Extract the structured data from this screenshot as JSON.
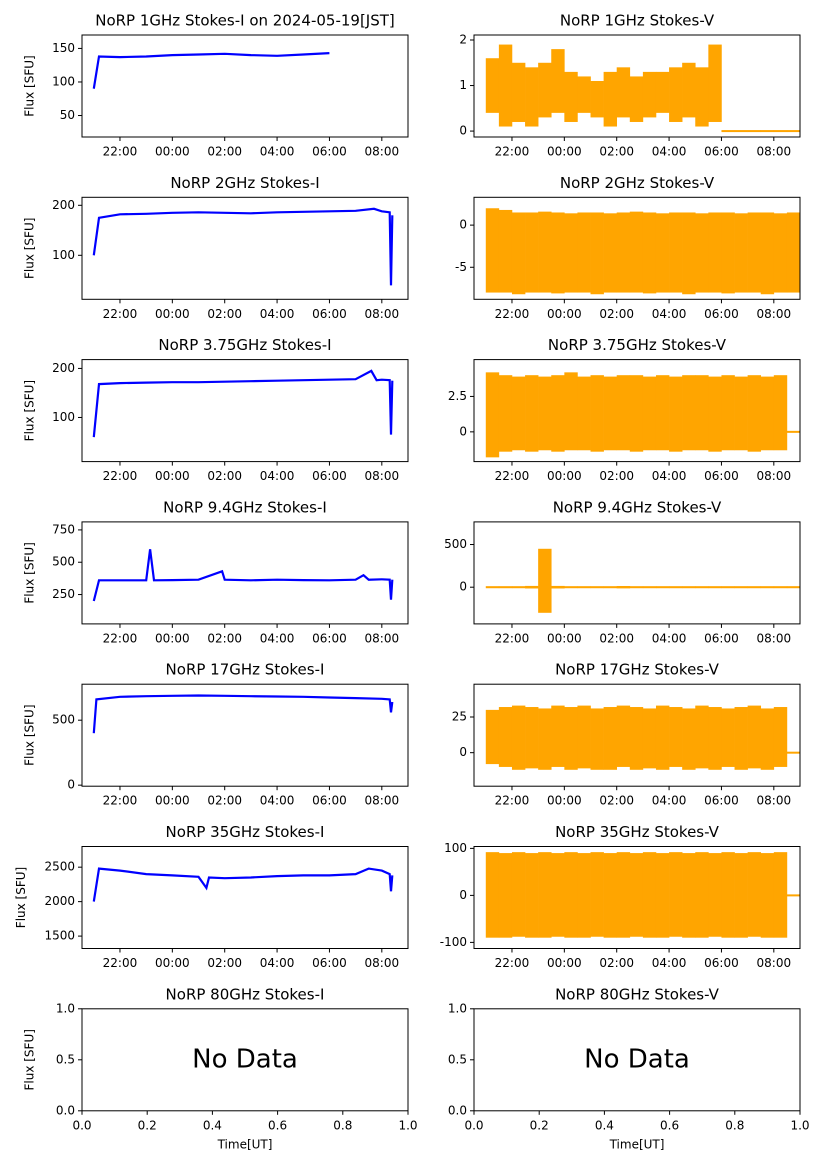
{
  "chart_data": [
    {
      "type": "line",
      "title": "NoRP 1GHz Stokes-I on 2024-05-19[JST]",
      "ylabel": "Flux [SFU]",
      "color": "#0000ff",
      "x": [
        21,
        21.2,
        22,
        23,
        24,
        25,
        26,
        27,
        28,
        29,
        30
      ],
      "values": [
        90,
        138,
        137,
        138,
        140,
        141,
        142,
        140,
        139,
        141,
        143
      ],
      "xlim": [
        20.55,
        33
      ],
      "xticks": [
        {
          "value": 22,
          "label": "22:00"
        },
        {
          "value": 24,
          "label": "00:00"
        },
        {
          "value": 26,
          "label": "02:00"
        },
        {
          "value": 28,
          "label": "04:00"
        },
        {
          "value": 30,
          "label": "06:00"
        },
        {
          "value": 32,
          "label": "08:00"
        }
      ],
      "ylim": [
        18,
        170
      ],
      "yticks": [
        50,
        100,
        150
      ]
    },
    {
      "type": "range",
      "title": "NoRP 1GHz Stokes-V",
      "color": "#ffa500",
      "x": [
        21,
        21.5,
        22,
        22.5,
        23,
        23.5,
        24,
        24.5,
        25,
        25.5,
        26,
        26.5,
        27,
        27.5,
        28,
        28.5,
        29,
        29.5,
        30,
        30.5,
        31,
        31.5,
        32,
        32.5
      ],
      "low": [
        0.4,
        0.1,
        0.2,
        0.1,
        0.3,
        0.4,
        0.2,
        0.4,
        0.3,
        0.1,
        0.3,
        0.2,
        0.3,
        0.4,
        0.2,
        0.3,
        0.1,
        0.2,
        0,
        0,
        0,
        0,
        0,
        0
      ],
      "high": [
        1.6,
        1.9,
        1.5,
        1.4,
        1.5,
        1.8,
        1.3,
        1.2,
        1.1,
        1.3,
        1.4,
        1.2,
        1.3,
        1.3,
        1.4,
        1.5,
        1.4,
        1.9,
        0,
        0,
        0,
        0,
        0,
        0
      ],
      "xlim": [
        20.55,
        33
      ],
      "xticks": [
        {
          "value": 22,
          "label": "22:00"
        },
        {
          "value": 24,
          "label": "00:00"
        },
        {
          "value": 26,
          "label": "02:00"
        },
        {
          "value": 28,
          "label": "04:00"
        },
        {
          "value": 30,
          "label": "06:00"
        },
        {
          "value": 32,
          "label": "08:00"
        }
      ],
      "ylim": [
        -0.13,
        2.11
      ],
      "yticks": [
        0,
        1,
        2
      ]
    },
    {
      "type": "line",
      "title": "NoRP 2GHz Stokes-I",
      "ylabel": "Flux [SFU]",
      "color": "#0000ff",
      "x": [
        21,
        21.2,
        22,
        23,
        24,
        25,
        26,
        27,
        28,
        29,
        30,
        31,
        31.7,
        32,
        32.3,
        32.35,
        32.4
      ],
      "values": [
        100,
        175,
        182,
        183,
        185,
        186,
        185,
        184,
        186,
        187,
        188,
        189,
        193,
        188,
        186,
        40,
        180
      ],
      "xlim": [
        20.55,
        33
      ],
      "xticks": [
        {
          "value": 22,
          "label": "22:00"
        },
        {
          "value": 24,
          "label": "00:00"
        },
        {
          "value": 26,
          "label": "02:00"
        },
        {
          "value": 28,
          "label": "04:00"
        },
        {
          "value": 30,
          "label": "06:00"
        },
        {
          "value": 32,
          "label": "08:00"
        }
      ],
      "ylim": [
        12,
        216
      ],
      "yticks": [
        100,
        200
      ]
    },
    {
      "type": "range",
      "title": "NoRP 2GHz Stokes-V",
      "color": "#ffa500",
      "x": [
        21,
        21.5,
        22,
        22.5,
        23,
        23.5,
        24,
        24.5,
        25,
        25.5,
        26,
        26.5,
        27,
        27.5,
        28,
        28.5,
        29,
        29.5,
        30,
        30.5,
        31,
        31.5,
        32,
        32.5
      ],
      "low": [
        -8,
        -8,
        -8.2,
        -8,
        -8,
        -8.1,
        -8,
        -8,
        -8.2,
        -8,
        -8,
        -8,
        -8.1,
        -8,
        -8,
        -8.2,
        -8,
        -8,
        -8.1,
        -8,
        -8,
        -8.2,
        -8,
        -8
      ],
      "high": [
        2,
        1.8,
        1.5,
        1.5,
        1.6,
        1.5,
        1.4,
        1.5,
        1.5,
        1.4,
        1.5,
        1.6,
        1.5,
        1.4,
        1.5,
        1.5,
        1.4,
        1.5,
        1.5,
        1.4,
        1.5,
        1.5,
        1.4,
        1.5
      ],
      "xlim": [
        20.55,
        33
      ],
      "xticks": [
        {
          "value": 22,
          "label": "22:00"
        },
        {
          "value": 24,
          "label": "00:00"
        },
        {
          "value": 26,
          "label": "02:00"
        },
        {
          "value": 28,
          "label": "04:00"
        },
        {
          "value": 30,
          "label": "06:00"
        },
        {
          "value": 32,
          "label": "08:00"
        }
      ],
      "ylim": [
        -8.8,
        3.3
      ],
      "yticks": [
        -5,
        0
      ]
    },
    {
      "type": "line",
      "title": "NoRP 3.75GHz Stokes-I",
      "ylabel": "Flux [SFU]",
      "color": "#0000ff",
      "x": [
        21,
        21.2,
        22,
        23,
        24,
        25,
        26,
        27,
        28,
        29,
        30,
        31,
        31.6,
        31.8,
        32,
        32.3,
        32.35,
        32.4
      ],
      "values": [
        60,
        168,
        170,
        171,
        172,
        172,
        173,
        174,
        175,
        176,
        177,
        178,
        195,
        176,
        177,
        176,
        65,
        175
      ],
      "xlim": [
        20.55,
        33
      ],
      "xticks": [
        {
          "value": 22,
          "label": "22:00"
        },
        {
          "value": 24,
          "label": "00:00"
        },
        {
          "value": 26,
          "label": "02:00"
        },
        {
          "value": 28,
          "label": "04:00"
        },
        {
          "value": 30,
          "label": "06:00"
        },
        {
          "value": 32,
          "label": "08:00"
        }
      ],
      "ylim": [
        10,
        218
      ],
      "yticks": [
        100,
        200
      ]
    },
    {
      "type": "range",
      "title": "NoRP 3.75GHz Stokes-V",
      "color": "#ffa500",
      "x": [
        21,
        21.5,
        22,
        22.5,
        23,
        23.5,
        24,
        24.5,
        25,
        25.5,
        26,
        26.5,
        27,
        27.5,
        28,
        28.5,
        29,
        29.5,
        30,
        30.5,
        31,
        31.5,
        32,
        32.5
      ],
      "low": [
        -1.8,
        -1.4,
        -1.3,
        -1.4,
        -1.3,
        -1.4,
        -1.3,
        -1.3,
        -1.4,
        -1.3,
        -1.3,
        -1.4,
        -1.3,
        -1.3,
        -1.4,
        -1.3,
        -1.3,
        -1.4,
        -1.3,
        -1.3,
        -1.4,
        -1.3,
        -1.3,
        0
      ],
      "high": [
        4.2,
        4,
        3.9,
        4,
        3.9,
        4,
        4.2,
        3.9,
        4,
        3.9,
        4,
        4,
        3.9,
        4,
        3.9,
        4,
        4,
        3.9,
        4,
        3.9,
        4,
        3.9,
        4,
        0
      ],
      "xlim": [
        20.55,
        33
      ],
      "xticks": [
        {
          "value": 22,
          "label": "22:00"
        },
        {
          "value": 24,
          "label": "00:00"
        },
        {
          "value": 26,
          "label": "02:00"
        },
        {
          "value": 28,
          "label": "04:00"
        },
        {
          "value": 30,
          "label": "06:00"
        },
        {
          "value": 32,
          "label": "08:00"
        }
      ],
      "ylim": [
        -2.1,
        5.1
      ],
      "yticks": [
        0.0,
        2.5
      ]
    },
    {
      "type": "line",
      "title": "NoRP 9.4GHz Stokes-I",
      "ylabel": "Flux [SFU]",
      "color": "#0000ff",
      "x": [
        21,
        21.2,
        22,
        23,
        23.15,
        23.3,
        24,
        25,
        25.9,
        26,
        27,
        28,
        29,
        30,
        31,
        31.3,
        31.5,
        32,
        32.3,
        32.35,
        32.4
      ],
      "values": [
        200,
        360,
        360,
        360,
        600,
        360,
        362,
        365,
        430,
        365,
        360,
        365,
        362,
        360,
        365,
        400,
        365,
        368,
        365,
        210,
        365
      ],
      "xlim": [
        20.55,
        33
      ],
      "xticks": [
        {
          "value": 22,
          "label": "22:00"
        },
        {
          "value": 24,
          "label": "00:00"
        },
        {
          "value": 26,
          "label": "02:00"
        },
        {
          "value": 28,
          "label": "04:00"
        },
        {
          "value": 30,
          "label": "06:00"
        },
        {
          "value": 32,
          "label": "08:00"
        }
      ],
      "ylim": [
        23,
        812
      ],
      "yticks": [
        250,
        500,
        750
      ]
    },
    {
      "type": "range",
      "title": "NoRP 9.4GHz Stokes-V",
      "color": "#ffa500",
      "x": [
        21,
        21.5,
        22,
        22.5,
        23,
        23.5,
        24,
        24.5,
        25,
        25.5,
        26,
        26.5,
        27,
        27.5,
        28,
        28.5,
        29,
        29.5,
        30,
        30.5,
        31,
        31.5,
        32,
        32.5
      ],
      "low": [
        -12,
        -12,
        -12,
        -15,
        -300,
        -15,
        -12,
        -12,
        -12,
        -12,
        -14,
        -12,
        -12,
        -12,
        -12,
        -12,
        -12,
        -12,
        -12,
        -12,
        -12,
        -12,
        -12,
        -12
      ],
      "high": [
        12,
        12,
        12,
        15,
        450,
        15,
        12,
        12,
        12,
        12,
        14,
        12,
        12,
        12,
        12,
        12,
        12,
        12,
        12,
        12,
        12,
        12,
        12,
        12
      ],
      "xlim": [
        20.55,
        33
      ],
      "xticks": [
        {
          "value": 22,
          "label": "22:00"
        },
        {
          "value": 24,
          "label": "00:00"
        },
        {
          "value": 26,
          "label": "02:00"
        },
        {
          "value": 28,
          "label": "04:00"
        },
        {
          "value": 30,
          "label": "06:00"
        },
        {
          "value": 32,
          "label": "08:00"
        }
      ],
      "ylim": [
        -430,
        765
      ],
      "yticks": [
        0,
        500
      ]
    },
    {
      "type": "line",
      "title": "NoRP 17GHz Stokes-I",
      "ylabel": "Flux [SFU]",
      "color": "#0000ff",
      "x": [
        21,
        21.1,
        22,
        23,
        24,
        25,
        26,
        27,
        28,
        29,
        30,
        31,
        32,
        32.3,
        32.35,
        32.4
      ],
      "values": [
        400,
        660,
        680,
        685,
        688,
        690,
        688,
        685,
        682,
        680,
        675,
        670,
        665,
        660,
        560,
        640
      ],
      "xlim": [
        20.55,
        33
      ],
      "xticks": [
        {
          "value": 22,
          "label": "22:00"
        },
        {
          "value": 24,
          "label": "00:00"
        },
        {
          "value": 26,
          "label": "02:00"
        },
        {
          "value": 28,
          "label": "04:00"
        },
        {
          "value": 30,
          "label": "06:00"
        },
        {
          "value": 32,
          "label": "08:00"
        }
      ],
      "ylim": [
        -8,
        777
      ],
      "yticks": [
        0,
        500
      ]
    },
    {
      "type": "range",
      "title": "NoRP 17GHz Stokes-V",
      "color": "#ffa500",
      "x": [
        21,
        21.5,
        22,
        22.5,
        23,
        23.5,
        24,
        24.5,
        25,
        25.5,
        26,
        26.5,
        27,
        27.5,
        28,
        28.5,
        29,
        29.5,
        30,
        30.5,
        31,
        31.5,
        32,
        32.5
      ],
      "low": [
        -8,
        -10,
        -12,
        -11,
        -12,
        -10,
        -12,
        -11,
        -12,
        -12,
        -10,
        -12,
        -11,
        -12,
        -10,
        -12,
        -11,
        -12,
        -10,
        -12,
        -11,
        -12,
        -10,
        0
      ],
      "high": [
        30,
        32,
        33,
        32,
        31,
        33,
        32,
        33,
        31,
        32,
        33,
        32,
        31,
        33,
        32,
        31,
        33,
        32,
        31,
        32,
        33,
        31,
        32,
        0
      ],
      "xlim": [
        20.55,
        33
      ],
      "xticks": [
        {
          "value": 22,
          "label": "22:00"
        },
        {
          "value": 24,
          "label": "00:00"
        },
        {
          "value": 26,
          "label": "02:00"
        },
        {
          "value": 28,
          "label": "04:00"
        },
        {
          "value": 30,
          "label": "06:00"
        },
        {
          "value": 32,
          "label": "08:00"
        }
      ],
      "ylim": [
        -23.5,
        48
      ],
      "yticks": [
        0,
        25
      ]
    },
    {
      "type": "line",
      "title": "NoRP 35GHz Stokes-I",
      "ylabel": "Flux [SFU]",
      "color": "#0000ff",
      "x": [
        21,
        21.2,
        22,
        23,
        24,
        25,
        25.3,
        25.4,
        26,
        27,
        28,
        29,
        30,
        31,
        31.5,
        32,
        32.3,
        32.35,
        32.4
      ],
      "values": [
        2000,
        2480,
        2450,
        2400,
        2380,
        2360,
        2200,
        2350,
        2340,
        2350,
        2370,
        2380,
        2380,
        2400,
        2480,
        2450,
        2400,
        2150,
        2380
      ],
      "xlim": [
        20.55,
        33
      ],
      "xticks": [
        {
          "value": 22,
          "label": "22:00"
        },
        {
          "value": 24,
          "label": "00:00"
        },
        {
          "value": 26,
          "label": "02:00"
        },
        {
          "value": 28,
          "label": "04:00"
        },
        {
          "value": 30,
          "label": "06:00"
        },
        {
          "value": 32,
          "label": "08:00"
        }
      ],
      "ylim": [
        1320,
        2800
      ],
      "yticks": [
        1500,
        2000,
        2500
      ]
    },
    {
      "type": "range",
      "title": "NoRP 35GHz Stokes-V",
      "color": "#ffa500",
      "x": [
        21,
        21.5,
        22,
        22.5,
        23,
        23.5,
        24,
        24.5,
        25,
        25.5,
        26,
        26.5,
        27,
        27.5,
        28,
        28.5,
        29,
        29.5,
        30,
        30.5,
        31,
        31.5,
        32,
        32.5
      ],
      "low": [
        -90,
        -90,
        -88,
        -90,
        -90,
        -88,
        -90,
        -90,
        -88,
        -90,
        -90,
        -88,
        -90,
        -90,
        -88,
        -90,
        -90,
        -88,
        -90,
        -90,
        -88,
        -90,
        -90,
        0
      ],
      "high": [
        92,
        90,
        92,
        90,
        92,
        90,
        92,
        90,
        92,
        90,
        92,
        90,
        92,
        90,
        92,
        90,
        92,
        90,
        92,
        90,
        92,
        90,
        92,
        0
      ],
      "xlim": [
        20.55,
        33
      ],
      "xticks": [
        {
          "value": 22,
          "label": "22:00"
        },
        {
          "value": 24,
          "label": "00:00"
        },
        {
          "value": 26,
          "label": "02:00"
        },
        {
          "value": 28,
          "label": "04:00"
        },
        {
          "value": 30,
          "label": "06:00"
        },
        {
          "value": 32,
          "label": "08:00"
        }
      ],
      "ylim": [
        -113,
        104
      ],
      "yticks": [
        -100,
        0,
        100
      ]
    },
    {
      "type": "empty",
      "title": "NoRP 80GHz Stokes-I",
      "ylabel": "Flux [SFU]",
      "xlabel": "Time[UT]",
      "annotation": "No Data",
      "xlim": [
        0,
        1
      ],
      "xticks": [
        {
          "value": 0,
          "label": "0.0"
        },
        0.2,
        0.4,
        0.6,
        0.8,
        {
          "value": 1,
          "label": "1.0"
        }
      ],
      "ylim": [
        0,
        1
      ],
      "yticks": [
        {
          "value": 0,
          "label": "0.0"
        },
        0.5,
        {
          "value": 1,
          "label": "1.0"
        }
      ]
    },
    {
      "type": "empty",
      "title": "NoRP 80GHz Stokes-V",
      "xlabel": "Time[UT]",
      "annotation": "No Data",
      "xlim": [
        0,
        1
      ],
      "xticks": [
        {
          "value": 0,
          "label": "0.0"
        },
        0.2,
        0.4,
        0.6,
        0.8,
        {
          "value": 1,
          "label": "1.0"
        }
      ],
      "ylim": [
        0,
        1
      ],
      "yticks": [
        {
          "value": 0,
          "label": "0.0"
        },
        0.5,
        {
          "value": 1,
          "label": "1.0"
        }
      ]
    }
  ]
}
